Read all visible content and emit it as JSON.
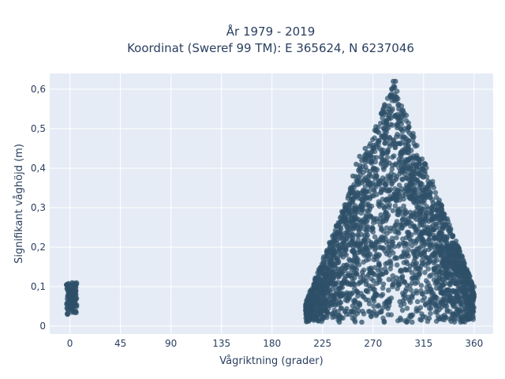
{
  "chart_data": {
    "type": "scatter",
    "title": "År 1979 - 2019",
    "subtitle": "Koordinat (Sweref 99 TM): E 365624, N 6237046",
    "xlabel": "Vågriktning (grader)",
    "ylabel": "Signifikant våghöjd (m)",
    "xlim": [
      -18,
      377
    ],
    "ylim": [
      -0.02,
      0.64
    ],
    "xticks": [
      0,
      45,
      90,
      135,
      180,
      225,
      270,
      315,
      360
    ],
    "xtick_labels": [
      "0",
      "45",
      "90",
      "135",
      "180",
      "225",
      "270",
      "315",
      "360"
    ],
    "yticks": [
      0,
      0.1,
      0.2,
      0.3,
      0.4,
      0.5,
      0.6
    ],
    "ytick_labels": [
      "0",
      "0,1",
      "0,2",
      "0,3",
      "0,4",
      "0,5",
      "0,6"
    ],
    "grid": true,
    "legend": "none",
    "marker_color": "#2e5068",
    "plot_bg": "#e5ecf6",
    "clusters": [
      {
        "x_range": [
          -3,
          6
        ],
        "y_range": [
          0.03,
          0.11
        ],
        "shape": "rect"
      },
      {
        "x_range": [
          210,
          360
        ],
        "y_range": [
          0.01,
          0.62
        ],
        "peak_x": 288,
        "shape": "triangle"
      }
    ],
    "points": [
      [
        -2,
        0.03
      ],
      [
        -1,
        0.05
      ],
      [
        0,
        0.07
      ],
      [
        1,
        0.09
      ],
      [
        2,
        0.11
      ],
      [
        3,
        0.1
      ],
      [
        4,
        0.06
      ],
      [
        5,
        0.09
      ],
      [
        6,
        0.05
      ],
      [
        1,
        0.04
      ],
      [
        210,
        0.05
      ],
      [
        212,
        0.04
      ],
      [
        215,
        0.06
      ],
      [
        218,
        0.08
      ],
      [
        220,
        0.07
      ],
      [
        222,
        0.09
      ],
      [
        225,
        0.1
      ],
      [
        228,
        0.12
      ],
      [
        230,
        0.14
      ],
      [
        232,
        0.16
      ],
      [
        235,
        0.18
      ],
      [
        238,
        0.21
      ],
      [
        240,
        0.24
      ],
      [
        243,
        0.27
      ],
      [
        245,
        0.3
      ],
      [
        248,
        0.33
      ],
      [
        250,
        0.35
      ],
      [
        252,
        0.38
      ],
      [
        255,
        0.41
      ],
      [
        258,
        0.43
      ],
      [
        260,
        0.42
      ],
      [
        263,
        0.45
      ],
      [
        265,
        0.44
      ],
      [
        268,
        0.43
      ],
      [
        270,
        0.45
      ],
      [
        273,
        0.46
      ],
      [
        275,
        0.47
      ],
      [
        278,
        0.48
      ],
      [
        280,
        0.5
      ],
      [
        282,
        0.52
      ],
      [
        284,
        0.55
      ],
      [
        286,
        0.58
      ],
      [
        287,
        0.6
      ],
      [
        288,
        0.62
      ],
      [
        290,
        0.62
      ],
      [
        291,
        0.58
      ],
      [
        293,
        0.55
      ],
      [
        295,
        0.52
      ],
      [
        297,
        0.48
      ],
      [
        299,
        0.44
      ],
      [
        301,
        0.4
      ],
      [
        303,
        0.38
      ],
      [
        305,
        0.36
      ],
      [
        307,
        0.34
      ],
      [
        310,
        0.3
      ],
      [
        313,
        0.27
      ],
      [
        316,
        0.24
      ],
      [
        320,
        0.22
      ],
      [
        325,
        0.2
      ],
      [
        330,
        0.18
      ],
      [
        335,
        0.17
      ],
      [
        340,
        0.16
      ],
      [
        345,
        0.15
      ],
      [
        350,
        0.14
      ],
      [
        355,
        0.12
      ],
      [
        358,
        0.1
      ],
      [
        360,
        0.08
      ],
      [
        359,
        0.05
      ],
      [
        356,
        0.03
      ],
      [
        350,
        0.02
      ],
      [
        340,
        0.02
      ],
      [
        320,
        0.02
      ],
      [
        300,
        0.01
      ],
      [
        280,
        0.01
      ],
      [
        260,
        0.01
      ],
      [
        240,
        0.01
      ],
      [
        225,
        0.02
      ],
      [
        215,
        0.03
      ]
    ]
  }
}
